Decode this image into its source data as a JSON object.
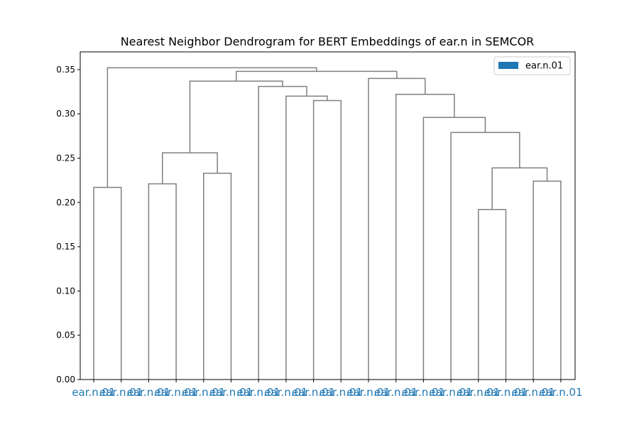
{
  "chart_data": {
    "type": "dendrogram",
    "title": "Nearest Neighbor Dendrogram for BERT Embeddings of ear.n in SEMCOR",
    "xlabel": "",
    "ylabel": "",
    "ylim": [
      0,
      0.37
    ],
    "yticks": [
      "0.00",
      "0.05",
      "0.10",
      "0.15",
      "0.20",
      "0.25",
      "0.30",
      "0.35"
    ],
    "ytick_values": [
      0,
      0.05,
      0.1,
      0.15,
      0.2,
      0.25,
      0.3,
      0.35
    ],
    "grid": false,
    "legend": {
      "position": "top-right",
      "entries": [
        {
          "label": "ear.n.01",
          "color": "#1f77b4"
        }
      ]
    },
    "leaf_labels": [
      "ear.n.01",
      "ear.n.01",
      "ear.n.01",
      "ear.n.01",
      "ear.n.01",
      "ear.n.01",
      "ear.n.01",
      "ear.n.01",
      "ear.n.01",
      "ear.n.01",
      "ear.n.01",
      "ear.n.01",
      "ear.n.01",
      "ear.n.01",
      "ear.n.01",
      "ear.n.01",
      "ear.n.01",
      "ear.n.01"
    ],
    "leaf_label_color": "#1f77b4",
    "link_color": "#808080",
    "merges": [
      {
        "left": "leaf:0",
        "right": "leaf:1",
        "height": 0.217
      },
      {
        "left": "leaf:2",
        "right": "leaf:3",
        "height": 0.221
      },
      {
        "left": "leaf:4",
        "right": "leaf:5",
        "height": 0.233
      },
      {
        "left": "node:1",
        "right": "node:2",
        "height": 0.256
      },
      {
        "left": "leaf:8",
        "right": "leaf:9",
        "height": 0.315
      },
      {
        "left": "leaf:7",
        "right": "node:4",
        "height": 0.32
      },
      {
        "left": "leaf:6",
        "right": "node:5",
        "height": 0.331
      },
      {
        "left": "node:3",
        "right": "node:6",
        "height": 0.337
      },
      {
        "left": "leaf:14",
        "right": "leaf:15",
        "height": 0.192
      },
      {
        "left": "leaf:16",
        "right": "leaf:17",
        "height": 0.224
      },
      {
        "left": "node:8",
        "right": "node:9",
        "height": 0.239
      },
      {
        "left": "leaf:13",
        "right": "node:10",
        "height": 0.279
      },
      {
        "left": "leaf:12",
        "right": "node:11",
        "height": 0.296
      },
      {
        "left": "leaf:11",
        "right": "node:12",
        "height": 0.322
      },
      {
        "left": "leaf:10",
        "right": "node:13",
        "height": 0.34
      },
      {
        "left": "node:7",
        "right": "node:14",
        "height": 0.348
      },
      {
        "left": "node:0",
        "right": "node:15",
        "height": 0.352
      }
    ]
  }
}
